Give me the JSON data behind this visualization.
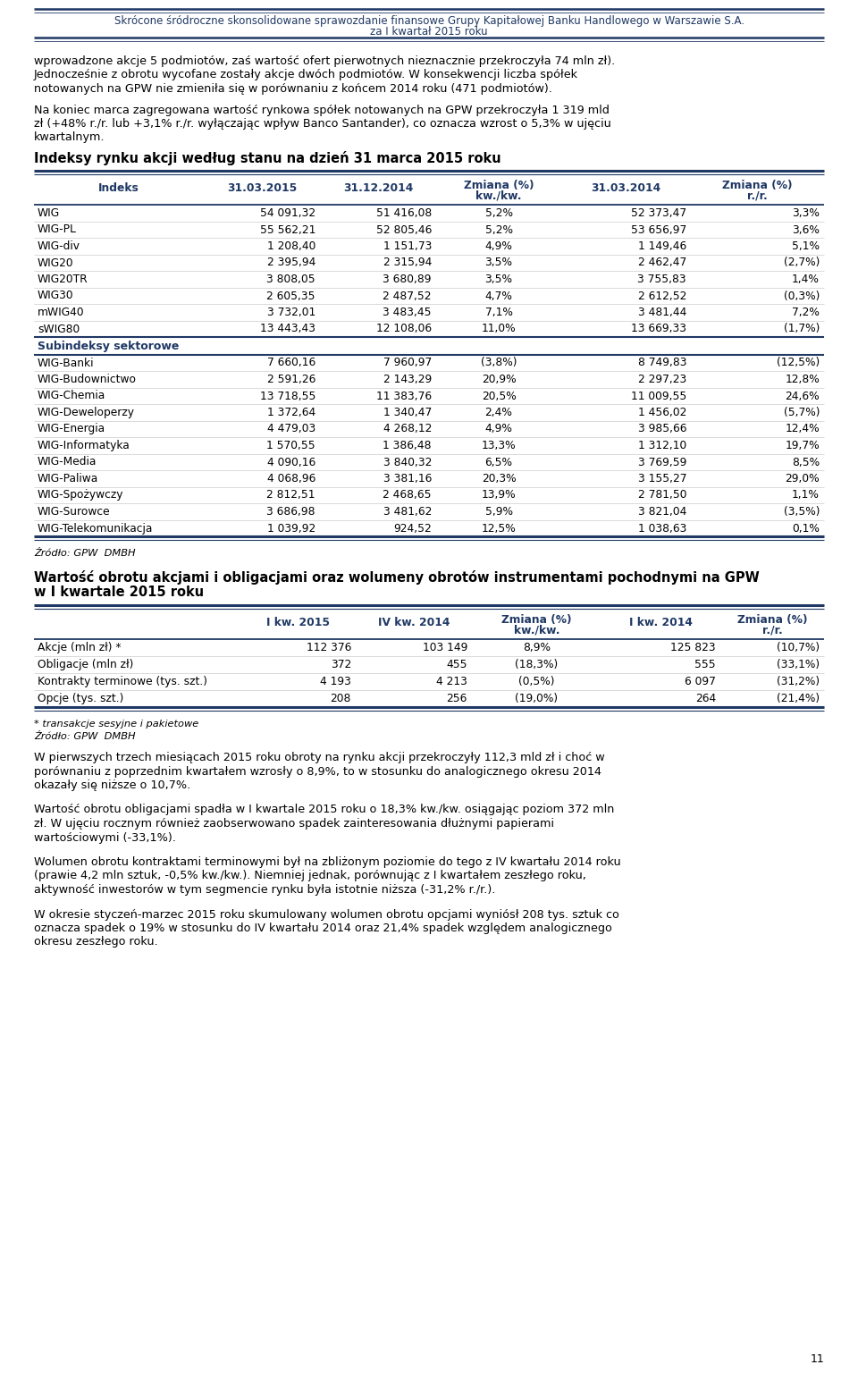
{
  "page_title_line1": "Skrócone śródroczne skonsolidowane sprawozdanie finansowe Grupy Kapitałowej Banku Handlowego w Warszawie S.A.",
  "page_title_line2": "za I kwartał 2015 roku",
  "page_number": "11",
  "intro_text": "wprowadzone akcje 5 podmiotów, zaś wartość ofert pierwotnych nieznacznie przekroczyła 74 mln zł).\nJednocześnie z obrotu wycofane zostały akcje dwóch podmiotów. W konsekwencji liczba spółek\nnotowanych na GPW nie zmieniła się w porównaniu z końcem 2014 roku (471 podmiotów).\n\nNa koniec marca zagregowana wartość rynkowa spółek notowanych na GPW przekroczyła 1 319 mld\nzł (+48% r./r. lub +3,1% r./r. wyłączając wpływ Banco Santander), co oznacza wzrost o 5,3% w ujęciu\nkwartalnym.",
  "table1_title": "Indeksy rynku akcji według stanu na dzień 31 marca 2015 roku",
  "table1_headers": [
    "Indeks",
    "31.03.2015",
    "31.12.2014",
    "Zmiana (%)\nkw./kw.",
    "31.03.2014",
    "Zmiana (%)\nr./r."
  ],
  "table1_subheader": "Subindeksy sektorowe",
  "table1_rows_main": [
    [
      "WIG",
      "54 091,32",
      "51 416,08",
      "5,2%",
      "52 373,47",
      "3,3%"
    ],
    [
      "WIG-PL",
      "55 562,21",
      "52 805,46",
      "5,2%",
      "53 656,97",
      "3,6%"
    ],
    [
      "WIG-div",
      "1 208,40",
      "1 151,73",
      "4,9%",
      "1 149,46",
      "5,1%"
    ],
    [
      "WIG20",
      "2 395,94",
      "2 315,94",
      "3,5%",
      "2 462,47",
      "(2,7%)"
    ],
    [
      "WIG20TR",
      "3 808,05",
      "3 680,89",
      "3,5%",
      "3 755,83",
      "1,4%"
    ],
    [
      "WIG30",
      "2 605,35",
      "2 487,52",
      "4,7%",
      "2 612,52",
      "(0,3%)"
    ],
    [
      "mWIG40",
      "3 732,01",
      "3 483,45",
      "7,1%",
      "3 481,44",
      "7,2%"
    ],
    [
      "sWIG80",
      "13 443,43",
      "12 108,06",
      "11,0%",
      "13 669,33",
      "(1,7%)"
    ]
  ],
  "table1_rows_sub": [
    [
      "WIG-Banki",
      "7 660,16",
      "7 960,97",
      "(3,8%)",
      "8 749,83",
      "(12,5%)"
    ],
    [
      "WIG-Budownictwo",
      "2 591,26",
      "2 143,29",
      "20,9%",
      "2 297,23",
      "12,8%"
    ],
    [
      "WIG-Chemia",
      "13 718,55",
      "11 383,76",
      "20,5%",
      "11 009,55",
      "24,6%"
    ],
    [
      "WIG-Deweloperzy",
      "1 372,64",
      "1 340,47",
      "2,4%",
      "1 456,02",
      "(5,7%)"
    ],
    [
      "WIG-Energia",
      "4 479,03",
      "4 268,12",
      "4,9%",
      "3 985,66",
      "12,4%"
    ],
    [
      "WIG-Informatyka",
      "1 570,55",
      "1 386,48",
      "13,3%",
      "1 312,10",
      "19,7%"
    ],
    [
      "WIG-Media",
      "4 090,16",
      "3 840,32",
      "6,5%",
      "3 769,59",
      "8,5%"
    ],
    [
      "WIG-Paliwa",
      "4 068,96",
      "3 381,16",
      "20,3%",
      "3 155,27",
      "29,0%"
    ],
    [
      "WIG-Spożywczy",
      "2 812,51",
      "2 468,65",
      "13,9%",
      "2 781,50",
      "1,1%"
    ],
    [
      "WIG-Surowce",
      "3 686,98",
      "3 481,62",
      "5,9%",
      "3 821,04",
      "(3,5%)"
    ],
    [
      "WIG-Telekomunikacja",
      "1 039,92",
      "924,52",
      "12,5%",
      "1 038,63",
      "0,1%"
    ]
  ],
  "table1_source": "Źródło: GPW  DMBH",
  "table2_title_line1": "Wartość obrotu akcjami i obligacjami oraz wolumeny obrotów instrumentami pochodnymi na GPW",
  "table2_title_line2": "w I kwartale 2015 roku",
  "table2_headers": [
    "",
    "I kw. 2015",
    "IV kw. 2014",
    "Zmiana (%)\nkw./kw.",
    "I kw. 2014",
    "Zmiana (%)\nr./r."
  ],
  "table2_rows": [
    [
      "Akcje (mln zł) *",
      "112 376",
      "103 149",
      "8,9%",
      "125 823",
      "(10,7%)"
    ],
    [
      "Obligacje (mln zł)",
      "372",
      "455",
      "(18,3%)",
      "555",
      "(33,1%)"
    ],
    [
      "Kontrakty terminowe (tys. szt.)",
      "4 193",
      "4 213",
      "(0,5%)",
      "6 097",
      "(31,2%)"
    ],
    [
      "Opcje (tys. szt.)",
      "208",
      "256",
      "(19,0%)",
      "264",
      "(21,4%)"
    ]
  ],
  "table2_footnote": "* transakcje sesyjne i pakietowe",
  "table2_source": "Źródło: GPW  DMBH",
  "para1": "W pierwszych trzech miesiącach 2015 roku obroty na rynku akcji przekroczyły 112,3 mld zł i choć w\nporównaniu z poprzednim kwartałem wzrosły o 8,9%, to w stosunku do analogicznego okresu 2014\nokazały się niższe o 10,7%.",
  "para2": "Wartość obrotu obligacjami spadła w I kwartale 2015 roku o 18,3% kw./kw. osiągając poziom 372 mln\nzł. W ujęciu rocznym również zaobserwowano spadek zainteresowania dłużnymi papierami\nwartościowymi (-33,1%).",
  "para3": "Wolumen obrotu kontraktami terminowymi był na zbliżonym poziomie do tego z IV kwartału 2014 roku\n(prawie 4,2 mln sztuk, -0,5% kw./kw.). Niemniej jednak, porównując z I kwartałem zeszłego roku,\naktywność inwestorów w tym segmencie rynku była istotnie niższa (-31,2% r./r.).",
  "para4": "W okresie styczeń-marzec 2015 roku skumulowany wolumen obrotu opcjami wyniósł 208 tys. sztuk co\noznacza spadek o 19% w stosunku do IV kwartału 2014 oraz 21,4% spadek względem analogicznego\nokresu zeszłego roku.",
  "header_color": "#1F3864",
  "bg_color": "#ffffff",
  "line_color_thin": "#8896a8",
  "line_color_thick": "#1F3864"
}
